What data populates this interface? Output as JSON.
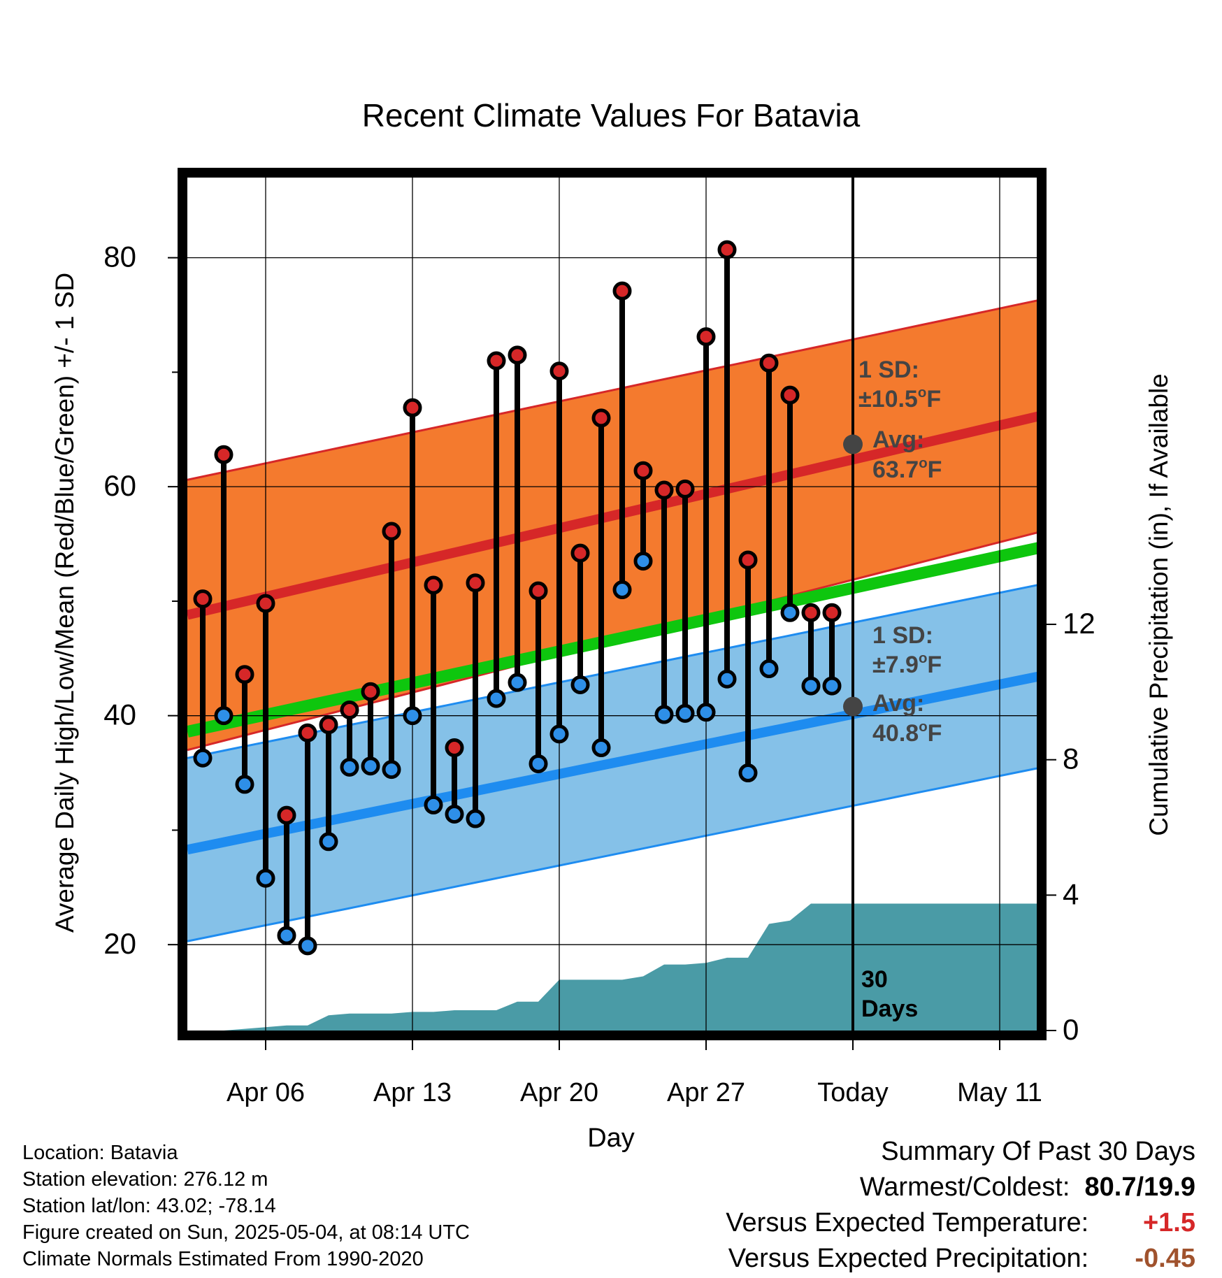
{
  "chart_data": {
    "type": "line",
    "title": "Recent Climate Values For Batavia",
    "xlabel": "Day",
    "ylabel": "Average Daily High/Low/Mean (Red/Blue/Green) +/- 1 SD",
    "ylabel_right": "Cumulative Precipitation (in), If Available",
    "x_ticks": [
      "Apr 06",
      "Apr 13",
      "Apr 20",
      "Apr 27",
      "Today",
      "May 11"
    ],
    "y_ticks": [
      20,
      40,
      60,
      80
    ],
    "y_right_ticks": [
      0,
      4,
      8,
      12
    ],
    "ylim": [
      12.5,
      87
    ],
    "y_right_lim": [
      0,
      25.2
    ],
    "x_dates": [
      "Apr 03",
      "Apr 04",
      "Apr 05",
      "Apr 06",
      "Apr 07",
      "Apr 08",
      "Apr 09",
      "Apr 10",
      "Apr 11",
      "Apr 12",
      "Apr 13",
      "Apr 14",
      "Apr 15",
      "Apr 16",
      "Apr 17",
      "Apr 18",
      "Apr 19",
      "Apr 20",
      "Apr 21",
      "Apr 22",
      "Apr 23",
      "Apr 24",
      "Apr 25",
      "Apr 26",
      "Apr 27",
      "Apr 28",
      "Apr 29",
      "Apr 30",
      "May 01",
      "May 02",
      "May 03"
    ],
    "series": [
      {
        "name": "High",
        "color": "#d62728",
        "values": [
          50.2,
          62.8,
          43.6,
          49.8,
          31.3,
          38.5,
          39.2,
          40.5,
          42.1,
          56.1,
          66.9,
          51.4,
          37.2,
          51.6,
          71.0,
          71.5,
          50.9,
          70.1,
          54.2,
          66.0,
          77.1,
          61.4,
          59.7,
          59.8,
          73.1,
          80.7,
          53.6,
          70.8,
          68.0,
          49.0,
          49.0
        ]
      },
      {
        "name": "Low",
        "color": "#2e8fe8",
        "values": [
          36.3,
          40.0,
          34.0,
          25.8,
          20.8,
          19.9,
          29.0,
          35.5,
          35.6,
          35.3,
          40.0,
          32.2,
          31.4,
          31.0,
          41.5,
          42.9,
          35.8,
          38.4,
          42.7,
          37.2,
          51.0,
          53.5,
          40.1,
          40.2,
          40.3,
          43.2,
          35.0,
          44.1,
          49.0,
          42.6,
          42.6
        ]
      }
    ],
    "normals": {
      "high_mean": {
        "start": 48.8,
        "end": 67.5
      },
      "high_sd": {
        "start": 11.8,
        "end": 10.0
      },
      "low_mean": {
        "start": 28.3,
        "end": 44.6
      },
      "low_sd": {
        "start": 8.0,
        "end": 8.0
      },
      "mean": {
        "start": 38.6,
        "end": 55.9
      }
    },
    "precip_cumulative": [
      0.0,
      0.0,
      0.05,
      0.1,
      0.15,
      0.15,
      0.45,
      0.5,
      0.5,
      0.5,
      0.55,
      0.55,
      0.6,
      0.6,
      0.6,
      0.85,
      0.85,
      1.5,
      1.5,
      1.5,
      1.5,
      1.6,
      1.95,
      1.95,
      2.0,
      2.15,
      2.15,
      3.15,
      3.25,
      3.75,
      3.75,
      3.75,
      3.75,
      3.75,
      3.75,
      3.75,
      3.75,
      3.75,
      3.75,
      3.75,
      3.75,
      3.75,
      3.75
    ],
    "today_annotation": {
      "high_sd_label": "1 SD:",
      "high_sd_value": "±10.5°F",
      "high_avg_label": "Avg:",
      "high_avg_value": "63.7°F",
      "high_avg": 63.7,
      "low_sd_label": "1 SD:",
      "low_sd_value": "±7.9°F",
      "low_avg_label": "Avg:",
      "low_avg_value": "40.8°F",
      "low_avg": 40.8,
      "period_number": "30",
      "period_label": "Days"
    },
    "colors": {
      "high_band": "#f47a2e",
      "high_mean": "#d62728",
      "low_band": "#85c1e8",
      "low_mean": "#1e8cf0",
      "mean": "#0ec60e",
      "precip": "#4a9ba6",
      "annotation": "#444444"
    },
    "grid": true
  },
  "info": {
    "location": "Location: Batavia",
    "elevation": "Station elevation: 276.12 m",
    "latlon": "Station lat/lon: 43.02; -78.14",
    "created": "Figure created on Sun, 2025-05-04, at 08:14 UTC",
    "normals": "Climate Normals Estimated From 1990-2020"
  },
  "summary": {
    "title": "Summary Of Past 30 Days",
    "warm_cold_label": "Warmest/Coldest:",
    "warm_cold_value": "80.7/19.9",
    "temp_label": "Versus Expected Temperature:",
    "temp_value": "+1.5",
    "temp_color": "#d62728",
    "precip_label": "Versus Expected Precipitation:",
    "precip_value": "-0.45",
    "precip_color": "#a0522d"
  }
}
